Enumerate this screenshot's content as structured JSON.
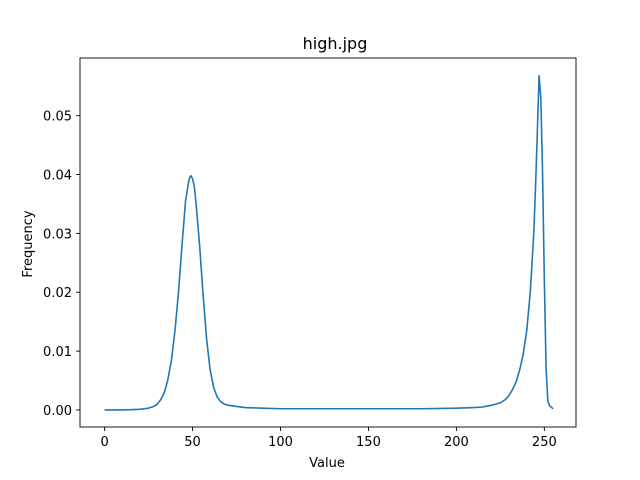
{
  "chart_data": {
    "type": "line",
    "title": "high.jpg",
    "xlabel": "Value",
    "ylabel": "Frequency",
    "xlim": [
      -14,
      268
    ],
    "ylim": [
      -0.0029,
      0.0598
    ],
    "xticks": [
      0,
      50,
      100,
      150,
      200,
      250
    ],
    "yticks": [
      0.0,
      0.01,
      0.02,
      0.03,
      0.04,
      0.05
    ],
    "ytick_labels": [
      "0.00",
      "0.01",
      "0.02",
      "0.03",
      "0.04",
      "0.05"
    ],
    "grid": false,
    "series": [
      {
        "color": "#1f77b4",
        "x": [
          0,
          10,
          20,
          25,
          28,
          30,
          32,
          34,
          36,
          38,
          40,
          42,
          44,
          46,
          48,
          49,
          50,
          51,
          52,
          54,
          56,
          58,
          60,
          62,
          64,
          66,
          68,
          70,
          75,
          80,
          90,
          100,
          120,
          140,
          160,
          180,
          200,
          210,
          215,
          220,
          225,
          228,
          230,
          232,
          234,
          236,
          238,
          240,
          242,
          244,
          245,
          246,
          247,
          248,
          249,
          250,
          251,
          252,
          253,
          255
        ],
        "y": [
          0.0,
          0.0,
          0.0001,
          0.0003,
          0.0006,
          0.001,
          0.0018,
          0.003,
          0.0052,
          0.0085,
          0.0135,
          0.02,
          0.028,
          0.0355,
          0.0392,
          0.0398,
          0.0393,
          0.038,
          0.035,
          0.028,
          0.0195,
          0.012,
          0.0068,
          0.0038,
          0.0022,
          0.0014,
          0.001,
          0.0008,
          0.0006,
          0.0004,
          0.0003,
          0.0002,
          0.0002,
          0.0002,
          0.0002,
          0.0002,
          0.0003,
          0.0004,
          0.0005,
          0.0008,
          0.0012,
          0.0018,
          0.0025,
          0.0035,
          0.0048,
          0.0068,
          0.0095,
          0.0135,
          0.02,
          0.03,
          0.038,
          0.047,
          0.0568,
          0.053,
          0.04,
          0.022,
          0.007,
          0.0015,
          0.0007,
          0.0002
        ]
      }
    ]
  }
}
